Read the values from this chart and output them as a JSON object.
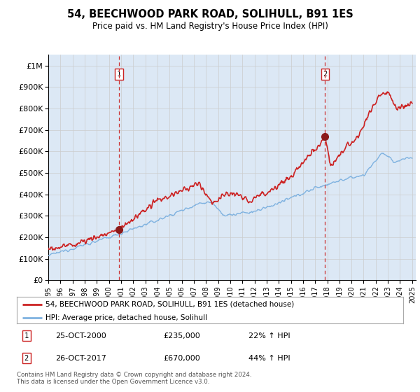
{
  "title": "54, BEECHWOOD PARK ROAD, SOLIHULL, B91 1ES",
  "subtitle": "Price paid vs. HM Land Registry's House Price Index (HPI)",
  "ylim": [
    0,
    1050000
  ],
  "xlim_start": 1995.0,
  "xlim_end": 2025.3,
  "yticks": [
    0,
    100000,
    200000,
    300000,
    400000,
    500000,
    600000,
    700000,
    800000,
    900000,
    1000000
  ],
  "ytick_labels": [
    "£0",
    "£100K",
    "£200K",
    "£300K",
    "£400K",
    "£500K",
    "£600K",
    "£700K",
    "£800K",
    "£900K",
    "£1M"
  ],
  "xticks": [
    1995,
    1996,
    1997,
    1998,
    1999,
    2000,
    2001,
    2002,
    2003,
    2004,
    2005,
    2006,
    2007,
    2008,
    2009,
    2010,
    2011,
    2012,
    2013,
    2014,
    2015,
    2016,
    2017,
    2018,
    2019,
    2020,
    2021,
    2022,
    2023,
    2024,
    2025
  ],
  "sale1_x": 2000.82,
  "sale1_y": 235000,
  "sale2_x": 2017.82,
  "sale2_y": 670000,
  "grid_color": "#cccccc",
  "bg_color": "#dce8f5",
  "hpi_color": "#7fb2e0",
  "price_color": "#cc2222",
  "marker_color": "#8b1a1a",
  "vline_color": "#cc3333",
  "legend_label_price": "54, BEECHWOOD PARK ROAD, SOLIHULL, B91 1ES (detached house)",
  "legend_label_hpi": "HPI: Average price, detached house, Solihull",
  "annotation1_num": "1",
  "annotation1_date": "25-OCT-2000",
  "annotation1_price": "£235,000",
  "annotation1_hpi": "22% ↑ HPI",
  "annotation2_num": "2",
  "annotation2_date": "26-OCT-2017",
  "annotation2_price": "£670,000",
  "annotation2_hpi": "44% ↑ HPI",
  "footer": "Contains HM Land Registry data © Crown copyright and database right 2024.\nThis data is licensed under the Open Government Licence v3.0."
}
